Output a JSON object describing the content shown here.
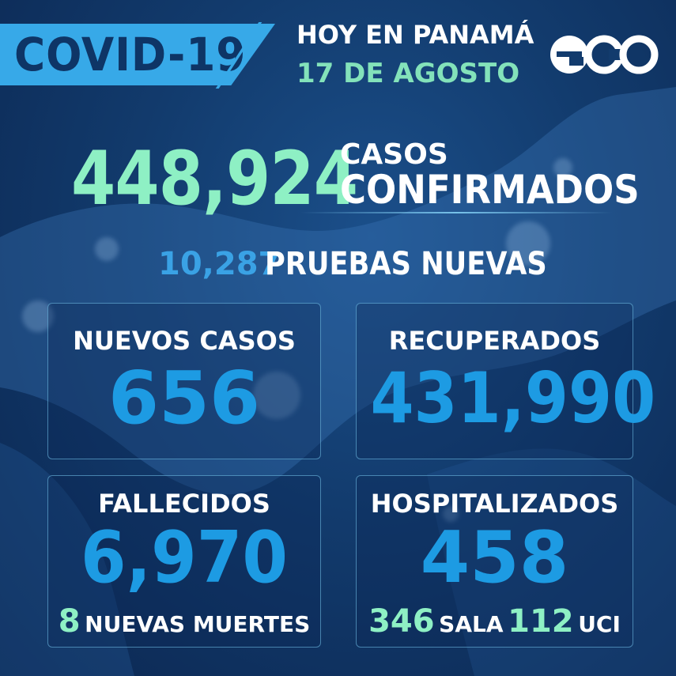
{
  "header": {
    "title": "COVID-19",
    "place": "HOY EN PANAMÁ",
    "date": "17 DE AGOSTO",
    "logo_icon": "eco-logo-icon"
  },
  "confirmed": {
    "value": "448,924",
    "label_line1": "CASOS",
    "label_line2": "CONFIRMADOS"
  },
  "tests": {
    "value": "10,287",
    "label": "PRUEBAS NUEVAS"
  },
  "cards": {
    "new_cases": {
      "label": "NUEVOS CASOS",
      "value": "656"
    },
    "recovered": {
      "label": "RECUPERADOS",
      "value": "431,990"
    },
    "deaths": {
      "label": "FALLECIDOS",
      "value": "6,970",
      "new_value": "8",
      "new_label": "NUEVAS MUERTES"
    },
    "hospitalized": {
      "label": "HOSPITALIZADOS",
      "value": "458",
      "ward_value": "346",
      "ward_label": "SALA",
      "icu_value": "112",
      "icu_label": "UCI"
    }
  },
  "colors": {
    "background": "#123b6d",
    "accent_blue": "#37a9e8",
    "mint": "#8ef0c4",
    "value_blue": "#1d9be3"
  }
}
